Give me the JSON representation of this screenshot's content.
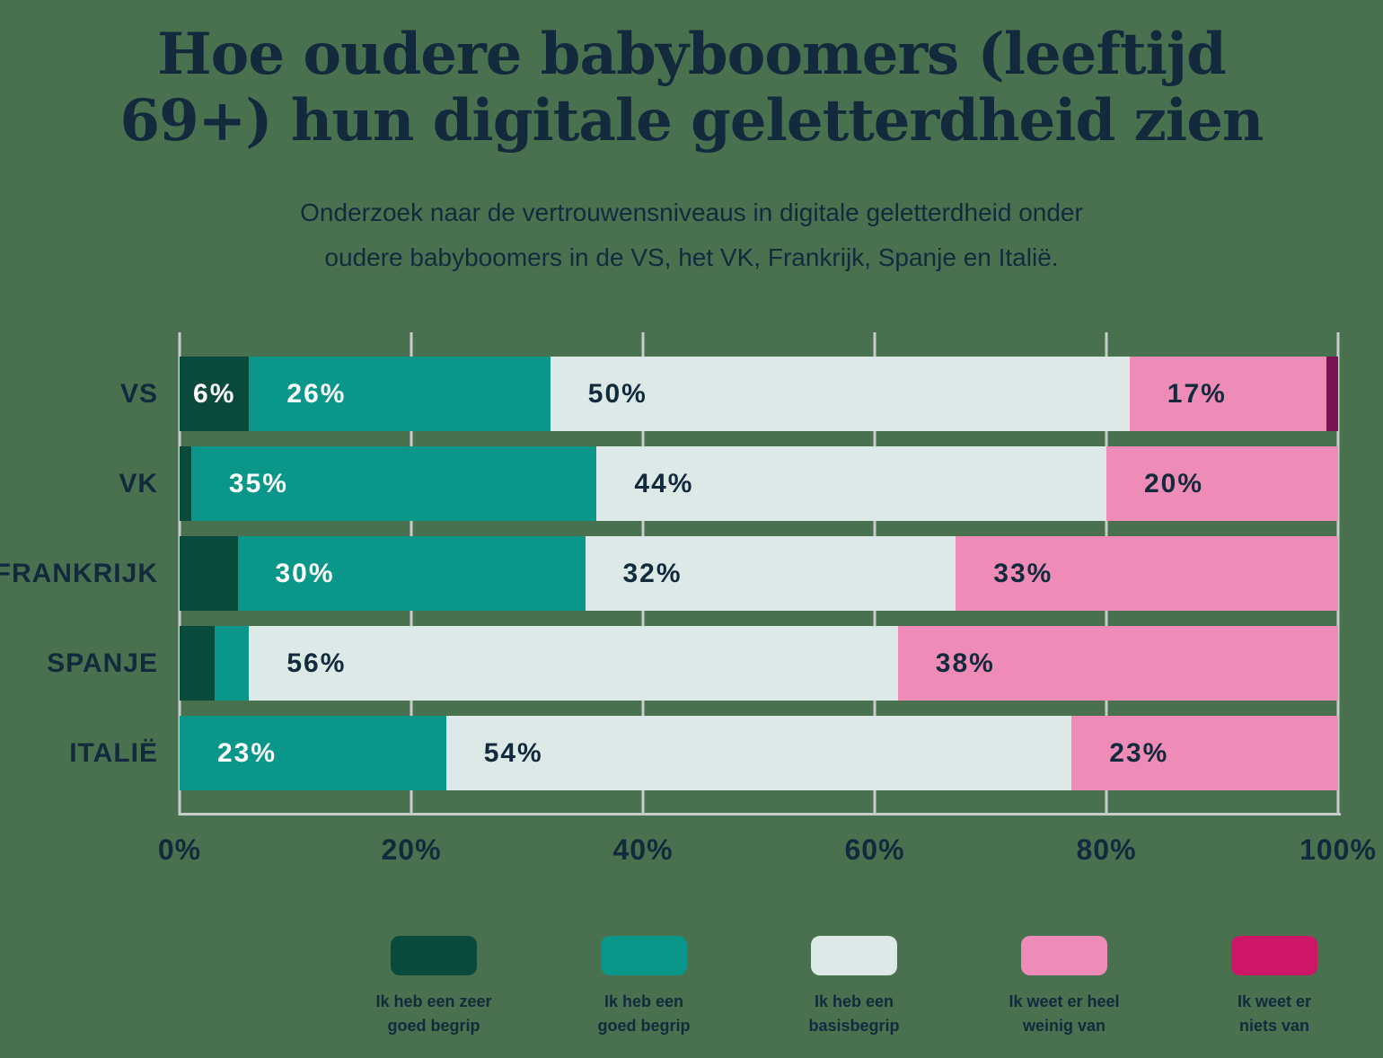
{
  "title": {
    "lines": [
      "Hoe oudere babyboomers (leeftijd",
      "69+) hun digitale geletterdheid zien"
    ]
  },
  "subtitle": {
    "lines": [
      "Onderzoek naar de vertrouwensniveaus in digitale geletterdheid onder",
      "oudere babyboomers in de VS, het VK, Frankrijk, Spanje en Italië."
    ]
  },
  "colors": {
    "background": "#49704F",
    "text": "#132A3D",
    "grid": "#C9CDC9",
    "label_on_dark": "#FFFFFF",
    "label_on_light": "#132A3D",
    "zeer_goed": "#094A3C",
    "goed": "#0A9689",
    "basis": "#DCE9E6",
    "weinig": "#EE8CB7",
    "niets": "#CE1666",
    "niets_bar": "#7A1150"
  },
  "chart_data": {
    "type": "bar",
    "orientation": "horizontal-stacked",
    "title": "Hoe oudere babyboomers (leeftijd 69+) hun digitale geletterdheid zien",
    "subtitle": "Onderzoek naar de vertrouwensniveaus in digitale geletterdheid onder oudere babyboomers in de VS, het VK, Frankrijk, Spanje en Italië.",
    "categories": [
      "VS",
      "VK",
      "FRANKRIJK",
      "SPANJE",
      "ITALIË"
    ],
    "series": [
      {
        "name": "Ik heb een zeer goed begrip",
        "color_key": "zeer_goed",
        "bar_color_key": "zeer_goed",
        "text": "light",
        "values": [
          6,
          1,
          5,
          3,
          0
        ]
      },
      {
        "name": "Ik heb een goed begrip",
        "color_key": "goed",
        "bar_color_key": "goed",
        "text": "light",
        "values": [
          26,
          35,
          30,
          3,
          23
        ]
      },
      {
        "name": "Ik heb een basisbegrip",
        "color_key": "basis",
        "bar_color_key": "basis",
        "text": "dark",
        "values": [
          50,
          44,
          32,
          56,
          54
        ]
      },
      {
        "name": "Ik weet er heel weinig van",
        "color_key": "weinig",
        "bar_color_key": "weinig",
        "text": "dark",
        "values": [
          17,
          20,
          33,
          38,
          23
        ]
      },
      {
        "name": "Ik weet er niets van",
        "color_key": "niets",
        "bar_color_key": "niets_bar",
        "text": "light",
        "values": [
          1,
          0,
          0,
          0,
          0
        ]
      }
    ],
    "value_suffix": "%",
    "label_min_value": 6,
    "x_ticks": [
      "0%",
      "20%",
      "40%",
      "60%",
      "80%",
      "100%"
    ],
    "x_tick_values": [
      0,
      20,
      40,
      60,
      80,
      100
    ],
    "xlim": [
      0,
      100
    ],
    "grid": true,
    "legend_position": "bottom"
  },
  "legend": {
    "items": [
      {
        "lines": [
          "Ik heb een zeer",
          "goed begrip"
        ],
        "color_key": "zeer_goed"
      },
      {
        "lines": [
          "Ik heb een",
          "goed begrip"
        ],
        "color_key": "goed"
      },
      {
        "lines": [
          "Ik heb een",
          "basisbegrip"
        ],
        "color_key": "basis"
      },
      {
        "lines": [
          "Ik weet er heel",
          "weinig van"
        ],
        "color_key": "weinig"
      },
      {
        "lines": [
          "Ik weet er",
          "niets van"
        ],
        "color_key": "niets"
      }
    ]
  }
}
